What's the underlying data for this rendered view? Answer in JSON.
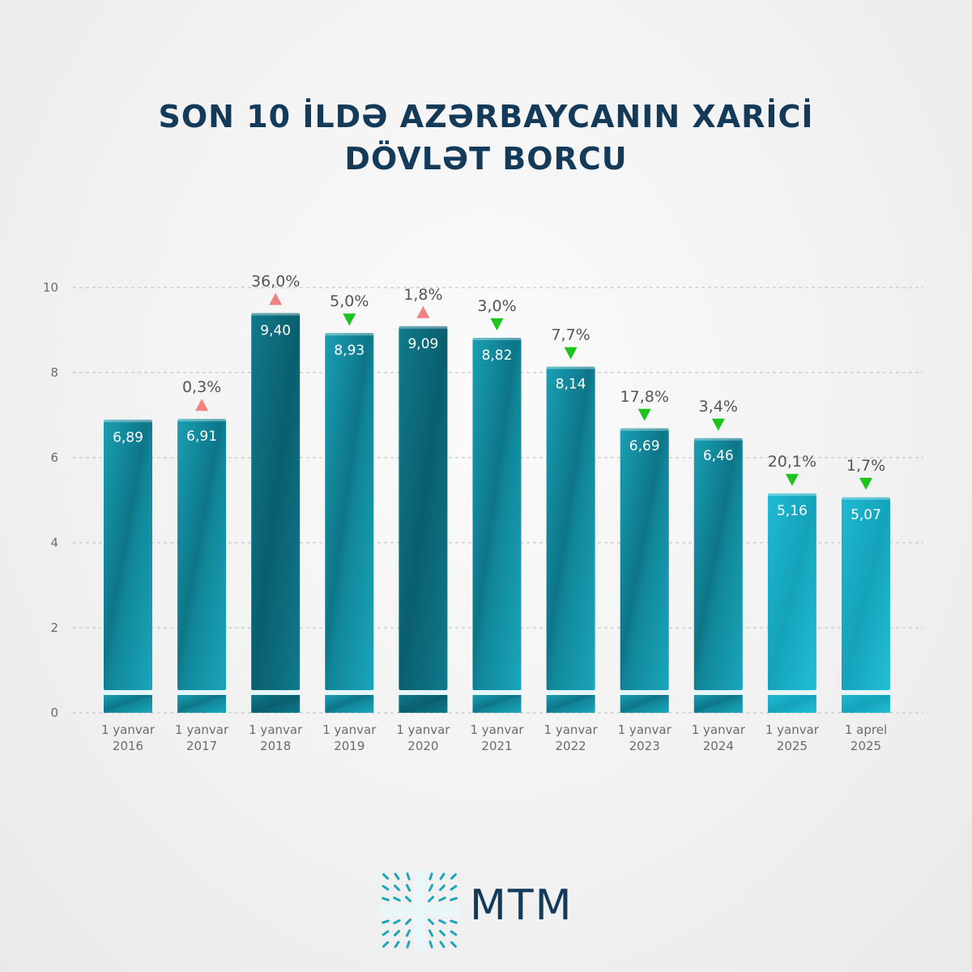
{
  "title_lines": [
    "SON 10 İLDƏ AZƏRBAYCANIN XARİCİ",
    "DÖVLƏT BORCU"
  ],
  "brand": "MTM",
  "colors": {
    "bar_dark": "#0f6f80",
    "bar_light": "#15b0c8",
    "up": "#f08282",
    "down": "#1ec41e",
    "title": "#143a5a"
  },
  "chart_data": {
    "type": "bar",
    "title": "SON 10 İLDƏ AZƏRBAYCANIN XARİCİ DÖVLƏT BORCU",
    "categories": [
      [
        "1 yanvar",
        "2016"
      ],
      [
        "1 yanvar",
        "2017"
      ],
      [
        "1 yanvar",
        "2018"
      ],
      [
        "1 yanvar",
        "2019"
      ],
      [
        "1 yanvar",
        "2020"
      ],
      [
        "1 yanvar",
        "2021"
      ],
      [
        "1 yanvar",
        "2022"
      ],
      [
        "1 yanvar",
        "2023"
      ],
      [
        "1 yanvar",
        "2024"
      ],
      [
        "1 yanvar",
        "2025"
      ],
      [
        "1 aprel",
        "2025"
      ]
    ],
    "values": [
      6.89,
      6.91,
      9.4,
      8.93,
      9.09,
      8.82,
      8.14,
      6.69,
      6.46,
      5.16,
      5.07
    ],
    "value_labels": [
      "6,89",
      "6,91",
      "9,40",
      "8,93",
      "9,09",
      "8,82",
      "8,14",
      "6,69",
      "6,46",
      "5,16",
      "5,07"
    ],
    "changes": [
      null,
      {
        "label": "0,3%",
        "direction": "up"
      },
      {
        "label": "36,0%",
        "direction": "up"
      },
      {
        "label": "5,0%",
        "direction": "down"
      },
      {
        "label": "1,8%",
        "direction": "up"
      },
      {
        "label": "3,0%",
        "direction": "down"
      },
      {
        "label": "7,7%",
        "direction": "down"
      },
      {
        "label": "17,8%",
        "direction": "down"
      },
      {
        "label": "3,4%",
        "direction": "down"
      },
      {
        "label": "20,1%",
        "direction": "down"
      },
      {
        "label": "1,7%",
        "direction": "down"
      }
    ],
    "ylim": [
      0,
      10
    ],
    "yticks": [
      0,
      2,
      4,
      6,
      8,
      10
    ],
    "grid": true,
    "xlabel": "",
    "ylabel": ""
  }
}
